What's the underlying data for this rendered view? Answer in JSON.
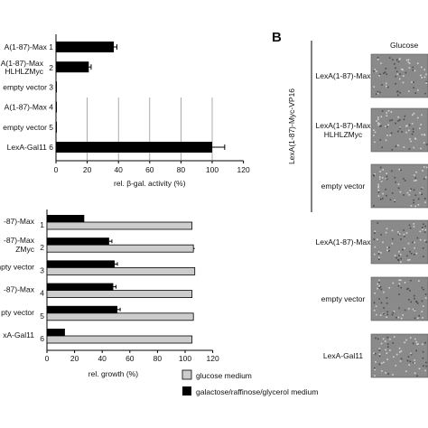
{
  "panel_b_label": "B",
  "panel_b_column_header": "Glucose",
  "panel_b_group_label": "LexA(1-87)-Myc-VP16",
  "panel_b_rows": [
    "LexA(1-87)-Max",
    "LexA(1-87)-Max HLHLZMyc",
    "empty vector",
    "LexA(1-87)-Max",
    "empty vector",
    "LexA-Gal11"
  ],
  "colors": {
    "black_bar": "#000000",
    "gray_bar": "#cccccc",
    "yeast_patch": "#8a8a8a"
  },
  "chart_data": [
    {
      "type": "bar",
      "orientation": "horizontal",
      "categories": [
        "A(1-87)-Max 1",
        "A(1-87)-Max HLHLZMyc 2",
        "empty vector 3",
        "A(1-87)-Max 4",
        "empty vector 5",
        "LexA-Gal11 6"
      ],
      "category_lines": [
        [
          "A(1-87)-Max 1"
        ],
        [
          "A(1-87)-Max",
          "HLHLZMyc"
        ],
        [
          "empty vector 3"
        ],
        [
          "A(1-87)-Max 4"
        ],
        [
          "empty vector 5"
        ],
        [
          "LexA-Gal11 6"
        ]
      ],
      "category_numbers": [
        "",
        "2",
        "",
        "",
        "",
        ""
      ],
      "series": [
        {
          "values": [
            37,
            21,
            0.5,
            0.5,
            0.5,
            100
          ],
          "errors": [
            2,
            1.5,
            0,
            0,
            0,
            8
          ]
        }
      ],
      "xlabel": "rel. β-gal. activity (%)",
      "xlim": [
        0,
        120
      ],
      "xticks": [
        0,
        20,
        40,
        60,
        80,
        100,
        120
      ],
      "grid": "vertical"
    },
    {
      "type": "bar",
      "orientation": "horizontal",
      "categories": [
        "-87)-Max 1",
        "-87)-Max ZMyc 2",
        "npty vector 3",
        "-87)-Max 4",
        "pty vector 5",
        "xA-Gal11 6"
      ],
      "category_lines": [
        [
          "-87)-Max"
        ],
        [
          "-87)-Max",
          "ZMyc"
        ],
        [
          "npty vector"
        ],
        [
          "-87)-Max"
        ],
        [
          "pty vector"
        ],
        [
          "xA-Gal11"
        ]
      ],
      "category_numbers": [
        "1",
        "2",
        "3",
        "4",
        "5",
        "6"
      ],
      "series": [
        {
          "name": "galactose/raffinose/glycerol medium",
          "values": [
            27,
            45,
            49,
            48,
            51,
            13
          ],
          "errors": [
            0,
            2,
            2,
            2,
            2,
            0
          ]
        },
        {
          "name": "glucose medium",
          "values": [
            105,
            106,
            107,
            105,
            106,
            105
          ],
          "errors": [
            0,
            1,
            0,
            0,
            0,
            0
          ]
        }
      ],
      "xlabel": "rel. growth (%)",
      "xlim": [
        0,
        120
      ],
      "xticks": [
        0,
        20,
        40,
        60,
        80,
        100,
        120
      ],
      "legend": "bottom-right"
    }
  ]
}
